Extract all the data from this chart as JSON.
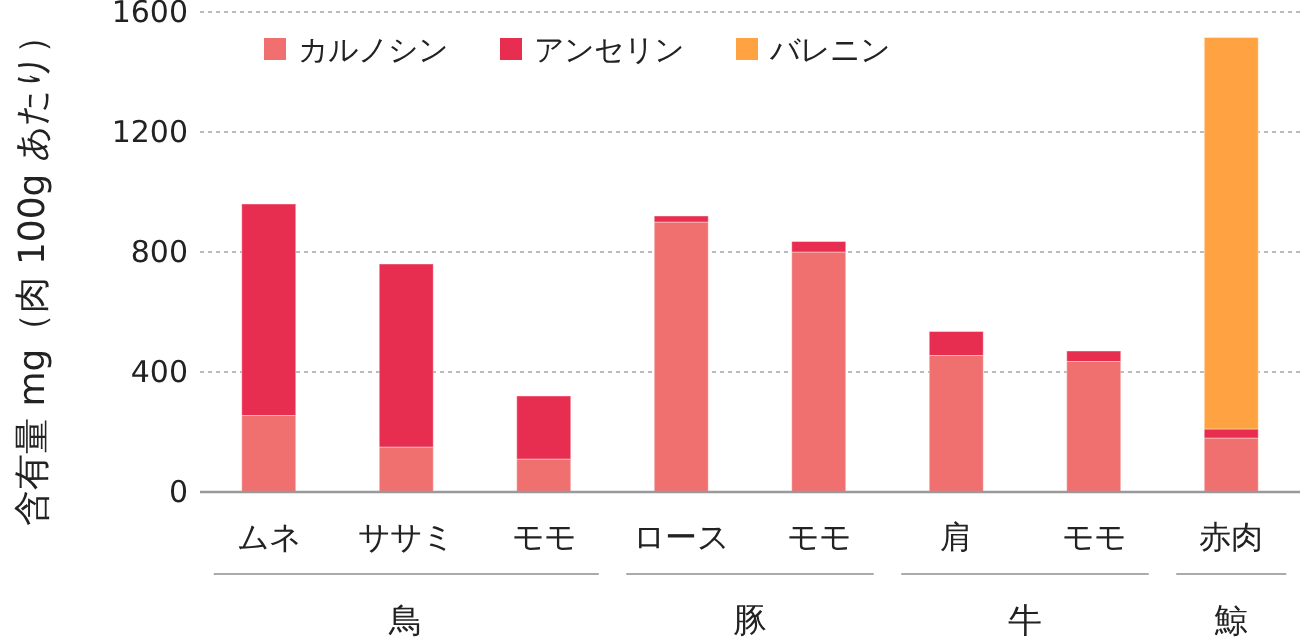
{
  "chart_data": {
    "type": "bar",
    "stacked": true,
    "ylabel": "含有量 mg（肉 100g あたり）",
    "categories": [
      "ムネ",
      "ササミ",
      "モモ",
      "ロース",
      "モモ",
      "肩",
      "モモ",
      "赤肉"
    ],
    "series": [
      {
        "name": "カルノシン",
        "color": "#f07070",
        "values": [
          255,
          150,
          110,
          900,
          800,
          455,
          435,
          180
        ]
      },
      {
        "name": "アンセリン",
        "color": "#e82e50",
        "values": [
          705,
          610,
          210,
          20,
          35,
          80,
          35,
          30
        ]
      },
      {
        "name": "バレニン",
        "color": "#ffa342",
        "values": [
          0,
          0,
          0,
          0,
          0,
          0,
          0,
          1305
        ]
      }
    ],
    "ylim": [
      0,
      1600
    ],
    "yticks": [
      0,
      400,
      800,
      1200,
      1600
    ],
    "grid": "y",
    "legend": "top",
    "annotations": [
      "鳥",
      "豚",
      "牛",
      "鯨"
    ]
  }
}
